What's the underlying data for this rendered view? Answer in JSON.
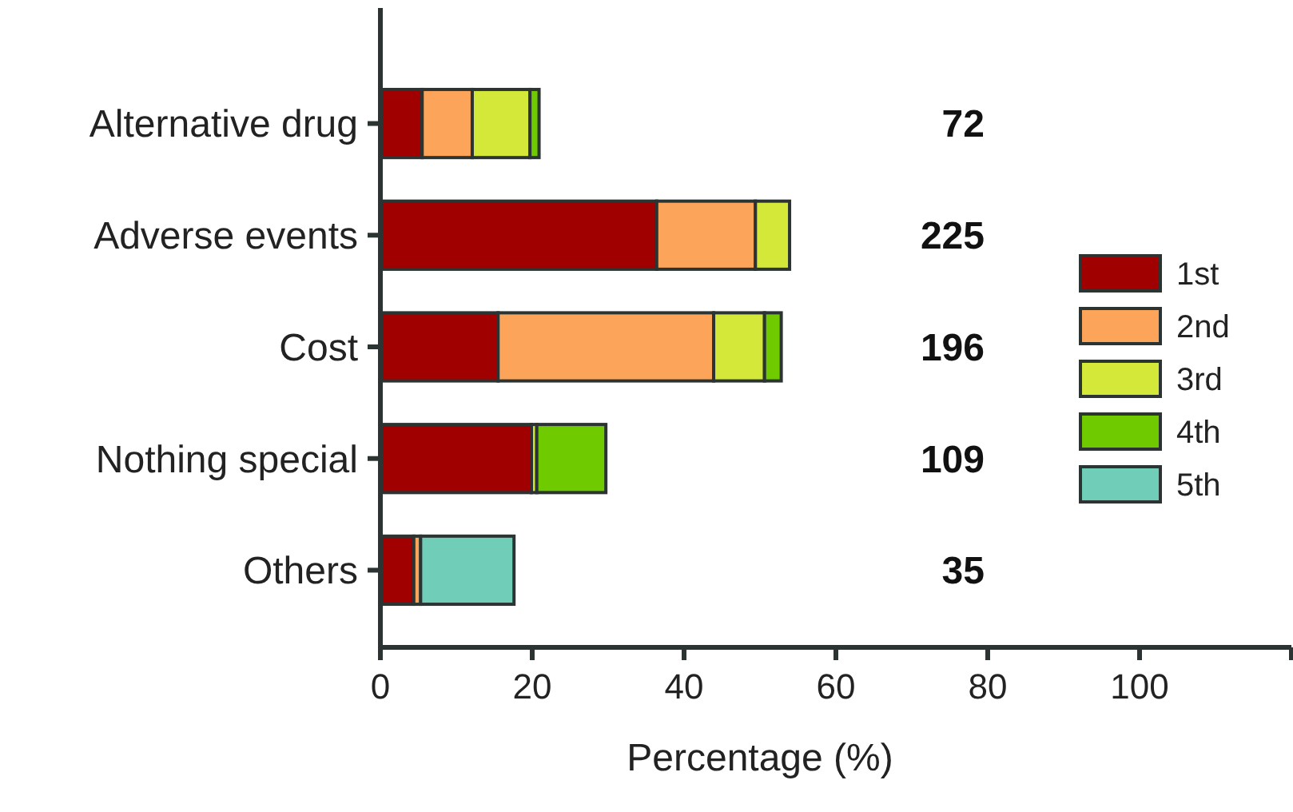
{
  "chart_data": {
    "type": "bar",
    "orientation": "horizontal",
    "stacked": true,
    "categories": [
      "Alternative drug",
      "Adverse events",
      "Cost",
      "Nothing special",
      "Others"
    ],
    "series": [
      {
        "name": "1st",
        "color": "#a00000",
        "values": [
          5.5,
          36.4,
          15.5,
          19.9,
          4.4
        ]
      },
      {
        "name": "2nd",
        "color": "#fca55a",
        "values": [
          6.6,
          13.0,
          28.4,
          0,
          0.9
        ]
      },
      {
        "name": "3rd",
        "color": "#d4e83a",
        "values": [
          7.6,
          4.5,
          6.7,
          0.7,
          0
        ]
      },
      {
        "name": "4th",
        "color": "#6fcb00",
        "values": [
          1.2,
          0,
          2.2,
          9.1,
          0
        ]
      },
      {
        "name": "5th",
        "color": "#70cdb8",
        "values": [
          0,
          0,
          0,
          0,
          12.3
        ]
      }
    ],
    "xlim": [
      0,
      120
    ],
    "xticks": [
      0,
      20,
      40,
      60,
      80,
      100,
      {
        "value": 120,
        "label": null
      }
    ],
    "xlabel": "Percentage (%)",
    "legend": "right",
    "grid": false,
    "annotations": [
      "72",
      "225",
      "196",
      "109",
      "35"
    ]
  }
}
